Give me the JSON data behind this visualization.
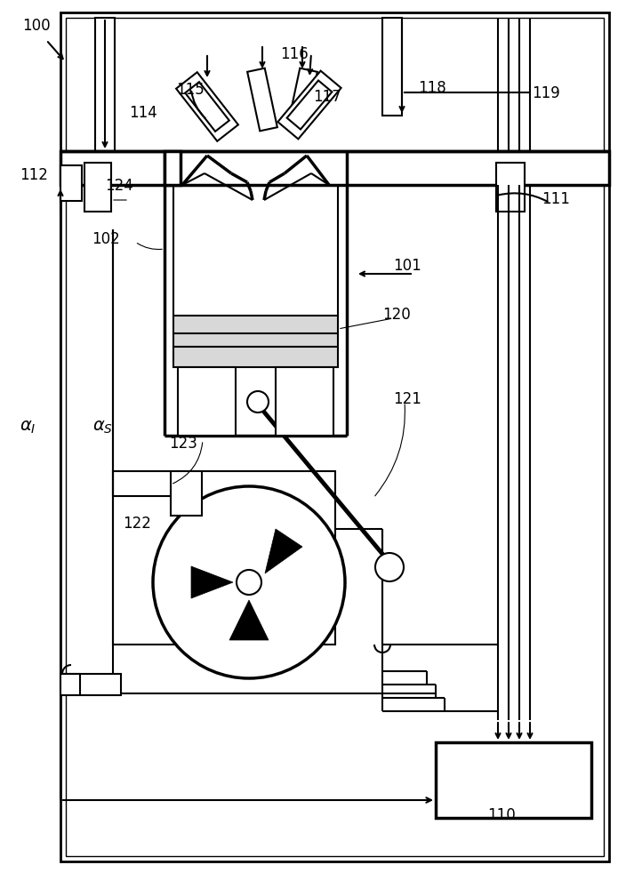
{
  "bg": "#ffffff",
  "lc": "#000000",
  "lw": 1.5,
  "tlw": 2.5,
  "fs": 11,
  "fig_w": 7.13,
  "fig_h": 10.0,
  "dpi": 100
}
